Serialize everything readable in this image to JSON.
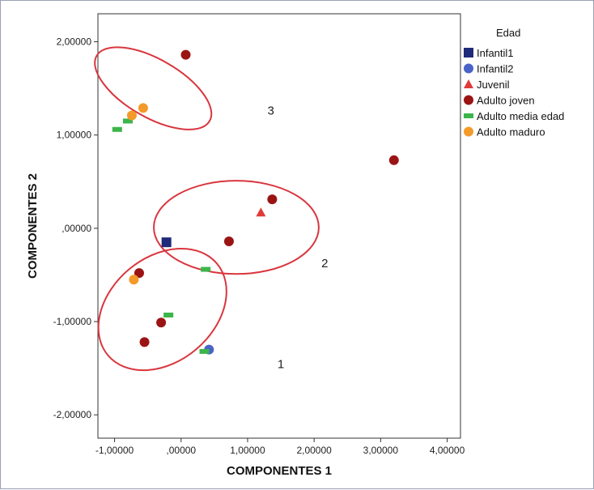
{
  "chart_data": {
    "type": "scatter",
    "xlabel": "COMPONENTES 1",
    "ylabel": "COMPONENTES 2",
    "xlim": [
      -1.25,
      4.2
    ],
    "ylim": [
      -2.25,
      2.3
    ],
    "xticks": [
      -1,
      0,
      1,
      2,
      3,
      4
    ],
    "yticks": [
      -2,
      -1,
      0,
      1,
      2
    ],
    "xtick_labels": [
      "-1,00000",
      ",00000",
      "1,00000",
      "2,00000",
      "3,00000",
      "4,00000"
    ],
    "ytick_labels": [
      "-2,00000",
      "-1,00000",
      ",00000",
      "1,00000",
      "2,00000"
    ],
    "grid": false,
    "legend": {
      "title": "Edad",
      "placement": "right",
      "entries": [
        {
          "name": "Infantil1",
          "marker": "square",
          "color": "#1f2a7a"
        },
        {
          "name": "Infantil2",
          "marker": "circle",
          "color": "#4a63c8"
        },
        {
          "name": "Juvenil",
          "marker": "triangle",
          "color": "#e03a3a"
        },
        {
          "name": "Adulto joven",
          "marker": "circle",
          "color": "#9b1414"
        },
        {
          "name": "Adulto media edad",
          "marker": "dash",
          "color": "#3cb54a"
        },
        {
          "name": "Adulto maduro",
          "marker": "circle",
          "color": "#f39a2a"
        }
      ]
    },
    "series": [
      {
        "name": "Infantil1",
        "points": [
          [
            -0.22,
            -0.15
          ]
        ]
      },
      {
        "name": "Infantil2",
        "points": [
          [
            0.42,
            -1.3
          ]
        ]
      },
      {
        "name": "Juvenil",
        "points": [
          [
            1.2,
            0.17
          ]
        ]
      },
      {
        "name": "Adulto joven",
        "points": [
          [
            0.07,
            1.86
          ],
          [
            3.2,
            0.73
          ],
          [
            1.37,
            0.31
          ],
          [
            0.72,
            -0.14
          ],
          [
            -0.63,
            -0.48
          ],
          [
            -0.3,
            -1.01
          ],
          [
            -0.55,
            -1.22
          ]
        ]
      },
      {
        "name": "Adulto media edad",
        "points": [
          [
            -0.96,
            1.06
          ],
          [
            -0.8,
            1.15
          ],
          [
            0.37,
            -0.44
          ],
          [
            -0.19,
            -0.93
          ],
          [
            0.35,
            -1.32
          ]
        ]
      },
      {
        "name": "Adulto maduro",
        "points": [
          [
            -0.57,
            1.29
          ],
          [
            -0.74,
            1.21
          ],
          [
            -0.71,
            -0.55
          ]
        ]
      }
    ],
    "clusters": [
      {
        "label": "1",
        "cx": -0.28,
        "cy": -0.87,
        "rx": 1.07,
        "ry": 0.56,
        "angle": 40,
        "label_x": 1.5,
        "label_y": -1.5
      },
      {
        "label": "2",
        "cx": 0.83,
        "cy": 0.01,
        "rx": 1.24,
        "ry": 0.5,
        "angle": 0,
        "label_x": 2.16,
        "label_y": -0.42
      },
      {
        "label": "3",
        "cx": -0.42,
        "cy": 1.5,
        "rx": 0.98,
        "ry": 0.31,
        "angle": -30,
        "label_x": 1.35,
        "label_y": 1.22
      }
    ]
  }
}
